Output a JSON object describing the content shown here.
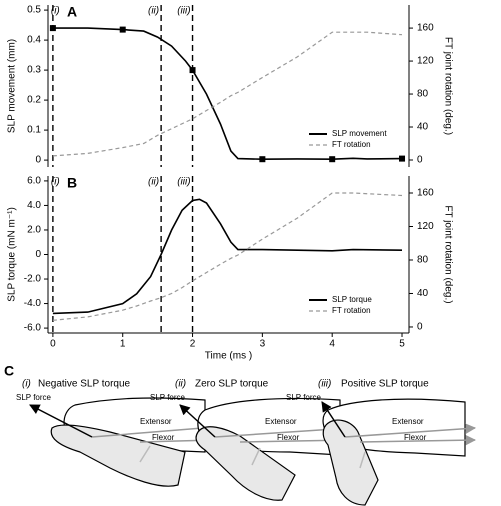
{
  "chart_data": [
    {
      "type": "line",
      "panel": "A",
      "ylabel": "SLP movement (mm)",
      "y2label": "FT joint rotation (deg.)",
      "xlim": [
        -0.07,
        5.1
      ],
      "ylim": [
        -0.023,
        0.517
      ],
      "yticks": [
        0,
        0.1,
        0.2,
        0.3,
        0.4,
        0.5
      ],
      "y2lim": [
        -8.5,
        188
      ],
      "y2ticks": [
        0,
        40,
        80,
        120,
        160
      ],
      "legend": "lower right",
      "vlines": [
        {
          "x": 0,
          "label": "(i)"
        },
        {
          "x": 1.55,
          "label": "(ii)"
        },
        {
          "x": 2.0,
          "label": "(iii)"
        }
      ],
      "x": [
        0,
        0.5,
        1.0,
        1.3,
        1.5,
        1.7,
        1.9,
        2.0,
        2.2,
        2.4,
        2.55,
        2.65,
        3.0,
        3.5,
        4.0,
        4.3,
        4.5,
        5.0
      ],
      "series": [
        {
          "name": "SLP movement",
          "color": "#000000",
          "dash": false,
          "markers": true,
          "values": [
            0.44,
            0.44,
            0.435,
            0.43,
            0.41,
            0.38,
            0.33,
            0.3,
            0.22,
            0.12,
            0.03,
            0.005,
            0.003,
            0.004,
            0.003,
            0.006,
            0.004,
            0.005
          ]
        },
        {
          "name": "FT rotation",
          "color": "#999999",
          "dash": true,
          "axis": "y2",
          "values": [
            5,
            8,
            15,
            20,
            30,
            38,
            46,
            50,
            60,
            70,
            78,
            82,
            100,
            125,
            155,
            155,
            155,
            152
          ]
        }
      ]
    },
    {
      "type": "line",
      "panel": "B",
      "ylabel": "SLP torque (mN m⁻¹)",
      "y2label": "FT joint rotation (deg.)",
      "xlabel": "Time (ms )",
      "xlim": [
        -0.07,
        5.1
      ],
      "xticks": [
        0,
        1,
        2,
        3,
        4,
        5
      ],
      "ylim": [
        -6.4,
        6.4
      ],
      "yticks": [
        {
          "value": -6,
          "label": "-6.0"
        },
        {
          "value": -4,
          "label": "-4.0"
        },
        {
          "value": -2,
          "label": "-2.0"
        },
        0,
        {
          "value": 2,
          "label": "2.0"
        },
        {
          "value": 4,
          "label": "4.0"
        },
        {
          "value": 6,
          "label": "6.0"
        }
      ],
      "y2lim": [
        -7.2,
        180.3
      ],
      "y2ticks": [
        0,
        40,
        80,
        120,
        160
      ],
      "legend": "lower right",
      "vlines": [
        {
          "x": 0,
          "label": "(i)"
        },
        {
          "x": 1.55,
          "label": "(ii)"
        },
        {
          "x": 2.0,
          "label": "(iii)"
        }
      ],
      "x": [
        0,
        0.5,
        1.0,
        1.2,
        1.4,
        1.55,
        1.7,
        1.85,
        2.0,
        2.1,
        2.2,
        2.4,
        2.55,
        2.65,
        3.0,
        3.5,
        4.0,
        4.3,
        5.0
      ],
      "series": [
        {
          "name": "SLP torque",
          "color": "#000000",
          "dash": false,
          "values": [
            -4.8,
            -4.7,
            -4.0,
            -3.2,
            -1.8,
            0,
            2.0,
            3.6,
            4.4,
            4.5,
            4.2,
            2.5,
            1.0,
            0.4,
            0.4,
            0.35,
            0.3,
            0.4,
            0.35
          ]
        },
        {
          "name": "FT rotation",
          "color": "#999999",
          "dash": true,
          "axis": "y2",
          "values": [
            8,
            12,
            20,
            25,
            31,
            35,
            40,
            47,
            55,
            60,
            65,
            75,
            82,
            86,
            105,
            130,
            160,
            160,
            157
          ]
        }
      ]
    }
  ],
  "panel_c": {
    "label": "C",
    "items": [
      {
        "num": "(i)",
        "title": "Negative SLP torque",
        "force": "SLP force",
        "extensor": "Extensor",
        "flexor": "Flexor"
      },
      {
        "num": "(ii)",
        "title": "Zero SLP torque",
        "force": "SLP force",
        "extensor": "Extensor",
        "flexor": "Flexor"
      },
      {
        "num": "(iii)",
        "title": "Positive SLP torque",
        "force": "SLP force",
        "extensor": "Extensor",
        "flexor": "Flexor"
      }
    ]
  }
}
